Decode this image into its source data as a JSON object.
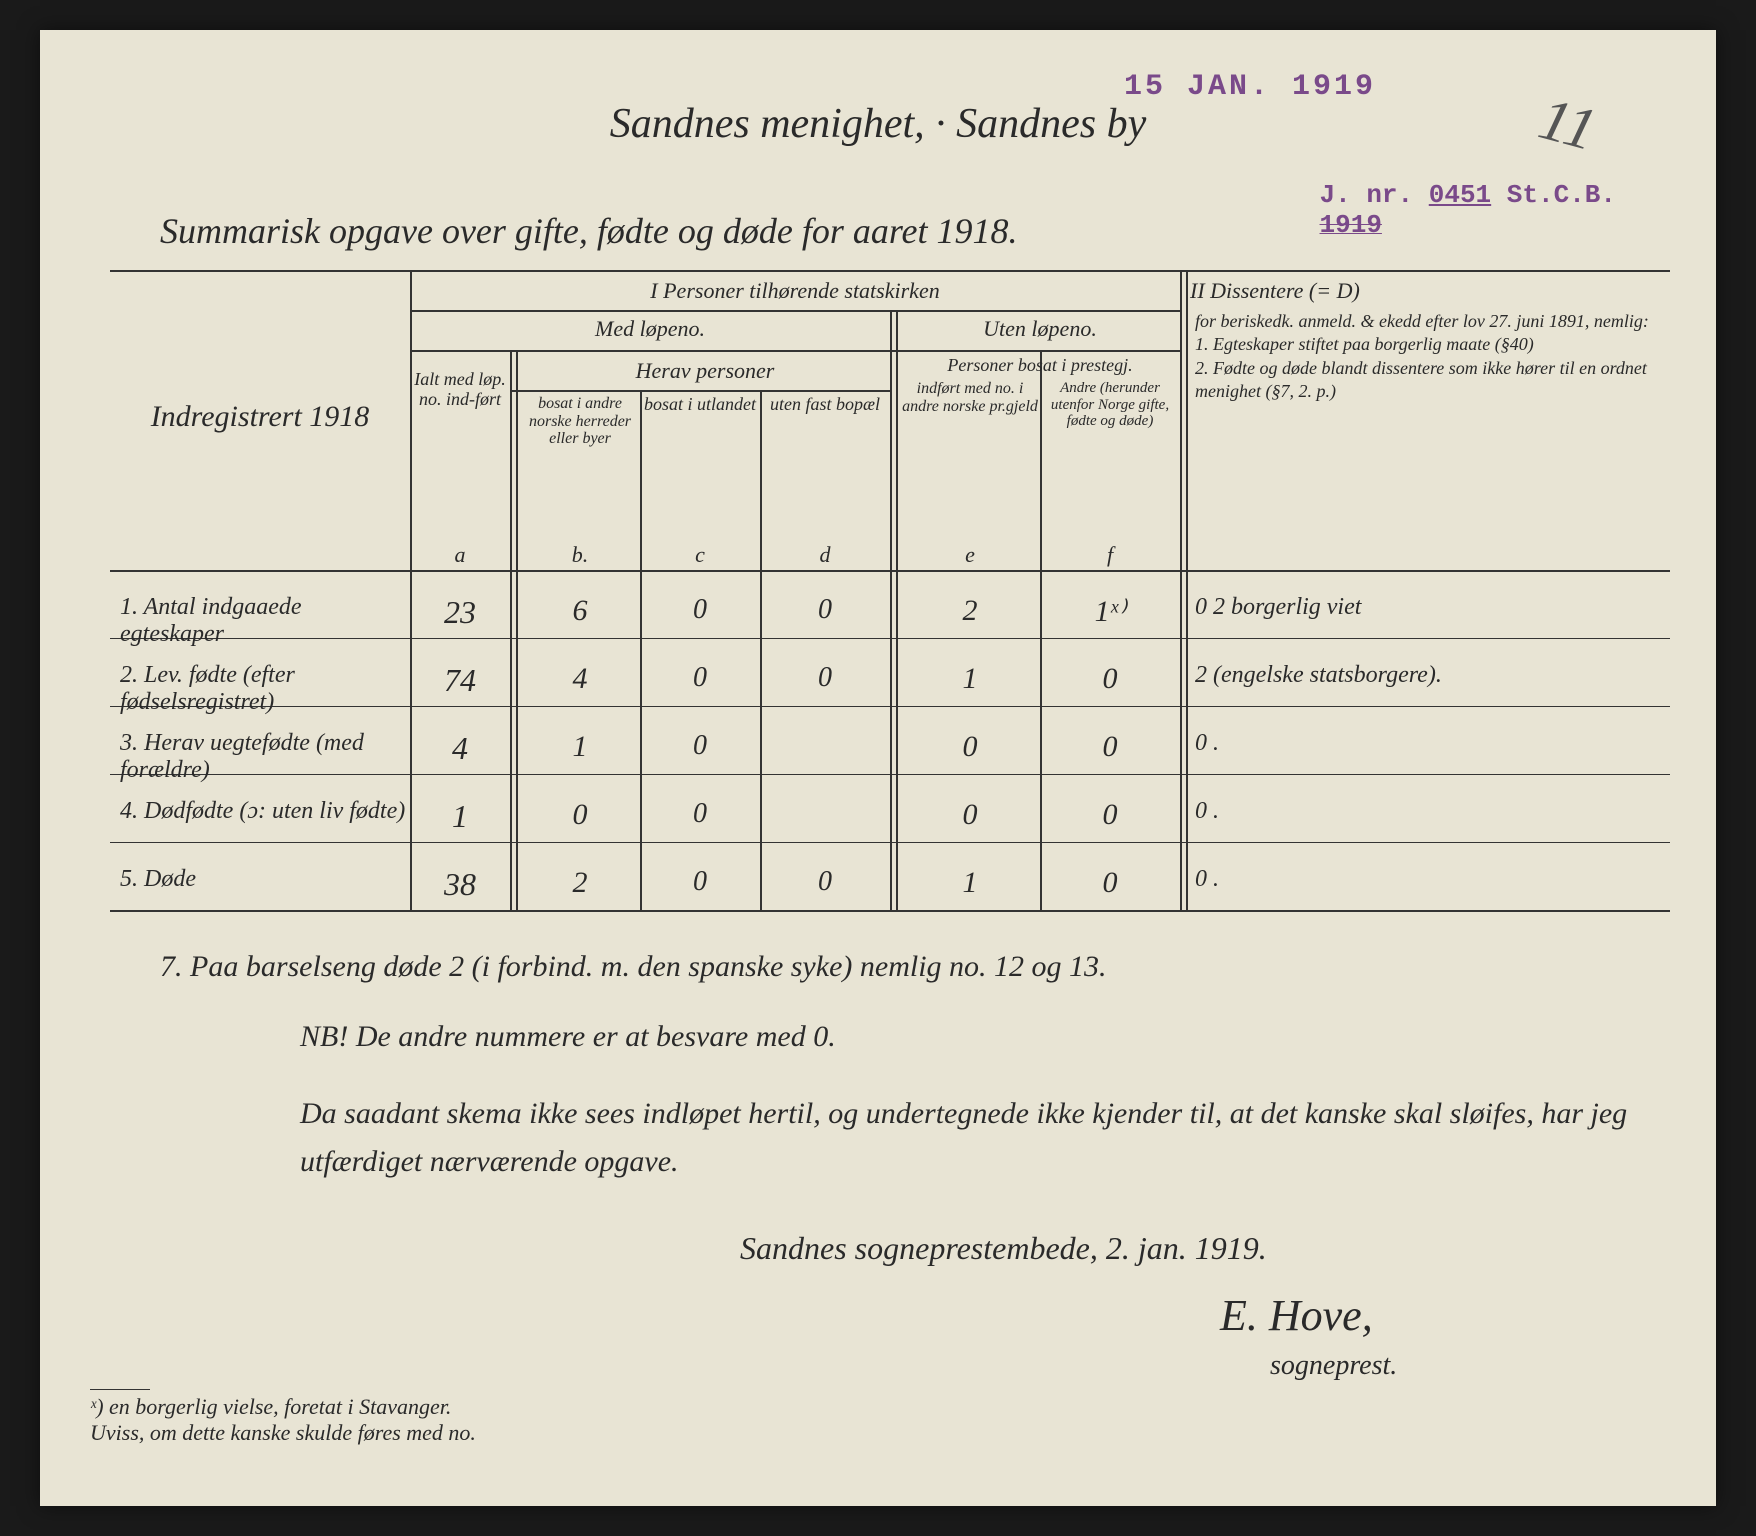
{
  "stamps": {
    "date": "15 JAN. 1919",
    "date_color": "#7a4a8a",
    "jnr_label": "J. nr.",
    "jnr_num": "0451",
    "jnr_suffix": "St.C.B.",
    "jnr_year": "1919",
    "jnr_color": "#7a4a8a"
  },
  "header": {
    "title": "Sandnes menighet, · Sandnes by",
    "subtitle": "Summarisk opgave over gifte, fødte og døde for aaret 1918.",
    "pagenum": "11"
  },
  "table": {
    "left_header": "Indregistrert 1918",
    "section_I": "I  Personer tilhørende statskirken",
    "section_II": "II  Dissentere (= D)",
    "med_lopeno": "Med løpeno.",
    "uten_lopeno": "Uten løpeno.",
    "herav_personer": "Herav personer",
    "prbosat": "Personer bosat i prestegj.",
    "col_a": "Ialt med løp. no. ind-ført",
    "col_b": "bosat i andre norske herreder eller byer",
    "col_c": "bosat i utlandet",
    "col_d": "uten fast bopæl",
    "col_e": "indført med no. i andre norske pr.gjeld",
    "col_f": "Andre (herunder utenfor Norge gifte, fødte og døde)",
    "col_II_text": "for beriskedk. anmeld. & ekedd efter lov 27. juni 1891, nemlig:\n1. Egteskaper stiftet paa borgerlig maate (§40)\n2. Fødte og døde blandt dissentere som ikke hører til en ordnet menighet (§7, 2. p.)",
    "letters": {
      "a": "a",
      "b": "b.",
      "c": "c",
      "d": "d",
      "e": "e",
      "f": "f"
    },
    "rows": [
      {
        "n": "1.",
        "label": "Antal indgaaede egteskaper",
        "a": "23",
        "b": "6",
        "c": "0",
        "d": "0",
        "e": "2",
        "f": "1ˣ⁾",
        "II": "0   2 borgerlig viet"
      },
      {
        "n": "2.",
        "label": "Lev. fødte (efter fødselsregistret)",
        "a": "74",
        "b": "4",
        "c": "0",
        "d": "0",
        "e": "1",
        "f": "0",
        "II": "2 (engelske statsborgere)."
      },
      {
        "n": "3.",
        "label": "Herav uegtefødte (med forældre)",
        "a": "4",
        "b": "1",
        "c": "0",
        "d": "",
        "e": "0",
        "f": "0",
        "II": "0    ."
      },
      {
        "n": "4.",
        "label": "Dødfødte (ɔ: uten liv fødte)",
        "a": "1",
        "b": "0",
        "c": "0",
        "d": "",
        "e": "0",
        "f": "0",
        "II": "0    ."
      },
      {
        "n": "5.",
        "label": "Døde",
        "a": "38",
        "b": "2",
        "c": "0",
        "d": "0",
        "e": "1",
        "f": "0",
        "II": "0    ."
      }
    ]
  },
  "notes": {
    "n7": "7.  Paa barselseng døde 2 (i forbind. m. den spanske syke) nemlig no. 12 og 13.",
    "nb": "NB!  De andre nummere er at besvare med 0.",
    "para": "Da saadant skema ikke sees indløpet hertil, og undertegnede ikke kjender til, at det kanske skal sløifes, har jeg utfærdiget nærværende opgave.",
    "place_date": "Sandnes sogneprestembede, 2. jan. 1919.",
    "sig": "E. Hove,",
    "sig2": "sogneprest."
  },
  "footnote": {
    "text": "ˣ) en borgerlig vielse, foretat i Stavanger.\nUviss, om dette kanske skulde føres med no."
  },
  "style": {
    "paper_bg": "#e8e4d4",
    "ink": "#2a2a2a"
  }
}
